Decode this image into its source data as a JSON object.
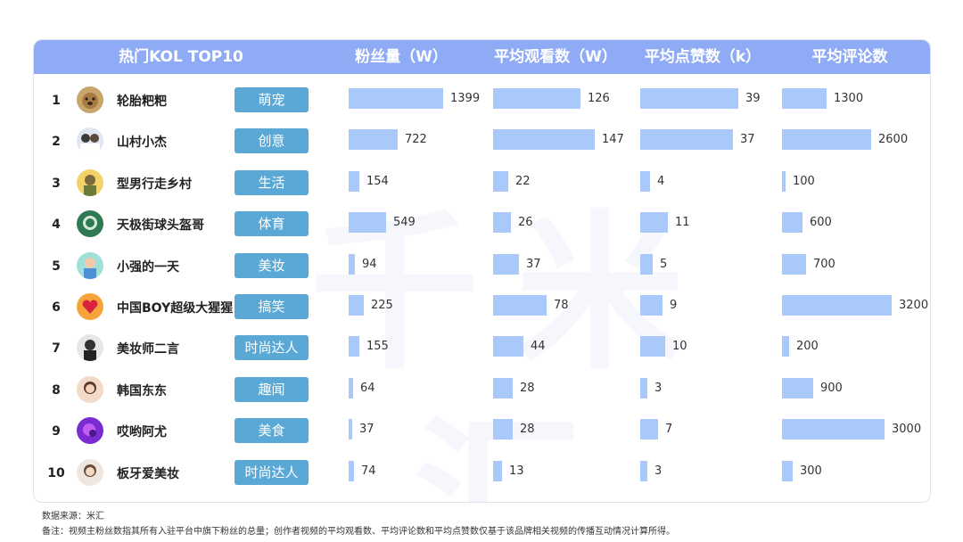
{
  "header": {
    "kol": "热门KOL TOP10",
    "fans": "粉丝量（W）",
    "views": "平均观看数（W）",
    "likes": "平均点赞数（k）",
    "comments": "平均评论数"
  },
  "watermark": "千米汇",
  "colors": {
    "header": "#8fabf5",
    "bar": "#a9c9fb",
    "tag": "#5aa8d6"
  },
  "chart_data": {
    "type": "table",
    "title": "热门KOL TOP10",
    "columns": [
      "粉丝量（W）",
      "平均观看数（W）",
      "平均点赞数（k）",
      "平均评论数"
    ],
    "rows": [
      {
        "rank": "1",
        "name": "轮胎粑粑",
        "tag": "萌宠",
        "avatar": "dog",
        "fans": 1399,
        "views": 126,
        "likes": 39,
        "comments": 1300
      },
      {
        "rank": "2",
        "name": "山村小杰",
        "tag": "创意",
        "avatar": "people",
        "fans": 722,
        "views": 147,
        "likes": 37,
        "comments": 2600
      },
      {
        "rank": "3",
        "name": "型男行走乡村",
        "tag": "生活",
        "avatar": "yellow",
        "fans": 154,
        "views": 22,
        "likes": 4,
        "comments": 100
      },
      {
        "rank": "4",
        "name": "天极街球头盔哥",
        "tag": "体育",
        "avatar": "green",
        "fans": 549,
        "views": 26,
        "likes": 11,
        "comments": 600
      },
      {
        "rank": "5",
        "name": "小强的一天",
        "tag": "美妆",
        "avatar": "teal",
        "fans": 94,
        "views": 37,
        "likes": 5,
        "comments": 700
      },
      {
        "rank": "6",
        "name": "中国BOY超级大猩猩",
        "tag": "搞笑",
        "avatar": "heart",
        "fans": 225,
        "views": 78,
        "likes": 9,
        "comments": 3200
      },
      {
        "rank": "7",
        "name": "美妆师二言",
        "tag": "时尚达人",
        "avatar": "bw",
        "fans": 155,
        "views": 44,
        "likes": 10,
        "comments": 200
      },
      {
        "rank": "8",
        "name": "韩国东东",
        "tag": "趣闻",
        "avatar": "girl",
        "fans": 64,
        "views": 28,
        "likes": 3,
        "comments": 900
      },
      {
        "rank": "9",
        "name": "哎哟阿尤",
        "tag": "美食",
        "avatar": "purple",
        "fans": 37,
        "views": 28,
        "likes": 7,
        "comments": 3000
      },
      {
        "rank": "10",
        "name": "板牙爱美妆",
        "tag": "时尚达人",
        "avatar": "lady",
        "fans": 74,
        "views": 13,
        "likes": 3,
        "comments": 300
      }
    ]
  },
  "notes": {
    "source": "数据来源：米汇",
    "remark": "备注：视频主粉丝数指其所有入驻平台中旗下粉丝的总量；创作者视频的平均观看数、平均评论数和平均点赞数仅基于该品牌相关视频的传播互动情况计算所得。"
  }
}
